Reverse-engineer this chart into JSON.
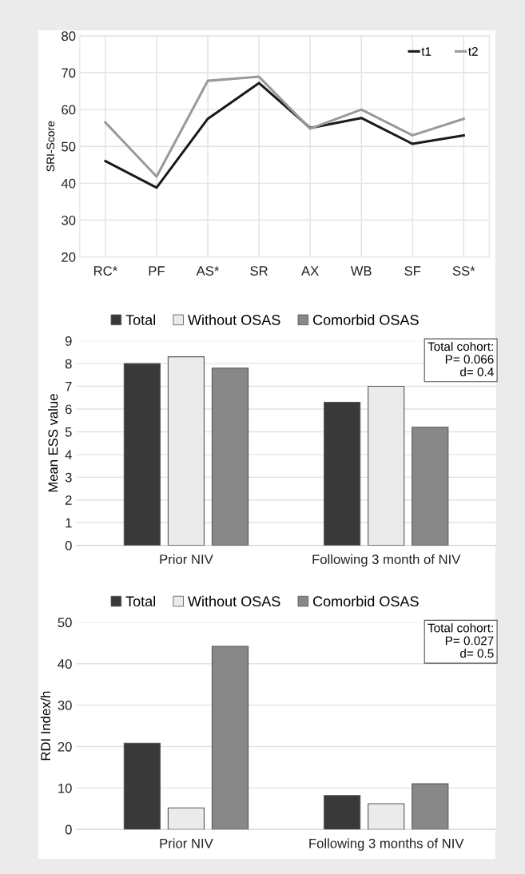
{
  "chart_data": [
    {
      "type": "line",
      "ylabel": "SRI-Score",
      "categories": [
        "RC*",
        "PF",
        "AS*",
        "SR",
        "AX",
        "WB",
        "SF",
        "SS*"
      ],
      "series": [
        {
          "name": "t1",
          "color": "#1a1a1a",
          "values": [
            46,
            38.8,
            57.5,
            67.2,
            55,
            57.7,
            50.7,
            53
          ]
        },
        {
          "name": "t2",
          "color": "#9a9a9a",
          "values": [
            56.5,
            41.8,
            67.8,
            68.9,
            54.8,
            60,
            53,
            57.5
          ]
        }
      ],
      "ylim": [
        20,
        80
      ],
      "yticks": [
        20,
        30,
        40,
        50,
        60,
        70,
        80
      ],
      "grid": true,
      "legend": "top right",
      "marker": "none",
      "line_style": "solid"
    },
    {
      "type": "bar",
      "ylabel": "Mean ESS value",
      "categories": [
        "Prior NIV",
        "Following 3 month of NIV"
      ],
      "series": [
        {
          "name": "Total",
          "color": "#393939",
          "values": [
            8.0,
            6.3
          ]
        },
        {
          "name": "Without OSAS",
          "color": "#ebebeb",
          "values": [
            8.3,
            7.0
          ]
        },
        {
          "name": "Comorbid OSAS",
          "color": "#888888",
          "values": [
            7.8,
            5.2
          ]
        }
      ],
      "ylim": [
        0,
        9
      ],
      "yticks": [
        0,
        1,
        2,
        3,
        4,
        5,
        6,
        7,
        8,
        9
      ],
      "grid": "y",
      "legend": "top",
      "annotations": [
        "Total cohort:\nP= 0.066\nd= 0.4"
      ]
    },
    {
      "type": "bar",
      "ylabel": "RDI Index/h",
      "categories": [
        "Prior NIV",
        "Following 3 months of NIV"
      ],
      "series": [
        {
          "name": "Total",
          "color": "#393939",
          "values": [
            20.8,
            8.2
          ]
        },
        {
          "name": "Without OSAS",
          "color": "#ebebeb",
          "values": [
            5.2,
            6.2
          ]
        },
        {
          "name": "Comorbid OSAS",
          "color": "#888888",
          "values": [
            44.2,
            11.0
          ]
        }
      ],
      "ylim": [
        0,
        50
      ],
      "yticks": [
        0,
        10,
        20,
        30,
        40,
        50
      ],
      "grid": "y",
      "legend": "top",
      "annotations": [
        "Total cohort:\nP= 0.027\nd= 0.5"
      ]
    }
  ]
}
